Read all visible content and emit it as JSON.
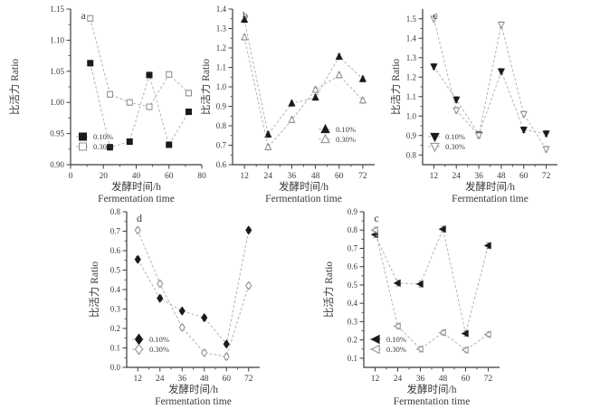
{
  "figure": {
    "background": "#ffffff",
    "axis_labels": {
      "y": "比活力 Ratio",
      "x_cn": "发酵时间/h",
      "x_en": "Fermentation time"
    },
    "legend_labels": [
      "0.10%",
      "0.30%"
    ],
    "colors": {
      "marker_filled": "#1a1a1a",
      "marker_open_stroke": "#8c8c8c",
      "line": "#b4b4b4",
      "errorbar_filled": "#6e6e6e",
      "errorbar_open": "#a0a0a0",
      "axis": "#3c3c3c",
      "text": "#3a3a3a"
    }
  },
  "chart_data": [
    {
      "type": "line",
      "panel": "a",
      "marker": "square",
      "legend_pos": "bottom-left",
      "x": [
        12,
        24,
        36,
        48,
        60,
        72
      ],
      "xlim": [
        0,
        80
      ],
      "xticks": [
        "0",
        "20",
        "40",
        "60",
        "80"
      ],
      "ylim": [
        0.9,
        1.15
      ],
      "yticks": [
        "0.90",
        "0.95",
        "1.00",
        "1.05",
        "1.10",
        "1.15"
      ],
      "series": [
        {
          "name": "0.10%",
          "style": "filled",
          "values": [
            1.063,
            0.928,
            0.937,
            1.044,
            0.932,
            0.985
          ]
        },
        {
          "name": "0.30%",
          "style": "open",
          "values": [
            1.135,
            1.013,
            1.0,
            0.993,
            1.045,
            1.015
          ]
        }
      ]
    },
    {
      "type": "line",
      "panel": "b",
      "marker": "triangle-up",
      "legend_pos": "bottom-right",
      "x": [
        12,
        24,
        36,
        48,
        60,
        72
      ],
      "xlim": [
        6,
        78
      ],
      "xticks": [
        "12",
        "24",
        "36",
        "48",
        "60",
        "72"
      ],
      "ylim": [
        0.6,
        1.4
      ],
      "yticks": [
        "0.6",
        "0.7",
        "0.8",
        "0.9",
        "1.0",
        "1.1",
        "1.2",
        "1.3",
        "1.4"
      ],
      "series": [
        {
          "name": "0.10%",
          "style": "filled",
          "values": [
            1.345,
            0.755,
            0.915,
            0.945,
            1.155,
            1.04
          ]
        },
        {
          "name": "0.30%",
          "style": "open",
          "values": [
            1.255,
            0.69,
            0.83,
            0.985,
            1.06,
            0.93
          ]
        }
      ]
    },
    {
      "type": "line",
      "panel": "c",
      "marker": "triangle-down",
      "legend_pos": "bottom-left",
      "x": [
        12,
        24,
        36,
        48,
        60,
        72
      ],
      "xlim": [
        6,
        78
      ],
      "xticks": [
        "12",
        "24",
        "36",
        "48",
        "60",
        "72"
      ],
      "ylim": [
        0.75,
        1.55
      ],
      "yticks": [
        "0.8",
        "0.9",
        "1.0",
        "1.1",
        "1.2",
        "1.3",
        "1.4",
        "1.5"
      ],
      "series": [
        {
          "name": "0.10%",
          "style": "filled",
          "values": [
            1.255,
            1.085,
            0.905,
            1.23,
            0.93,
            0.91
          ]
        },
        {
          "name": "0.30%",
          "style": "open",
          "values": [
            1.5,
            1.03,
            0.9,
            1.47,
            1.01,
            0.83
          ]
        }
      ]
    },
    {
      "type": "line",
      "panel": "d",
      "marker": "diamond",
      "legend_pos": "bottom-left",
      "x": [
        12,
        24,
        36,
        48,
        60,
        72
      ],
      "xlim": [
        6,
        78
      ],
      "xticks": [
        "12",
        "24",
        "36",
        "48",
        "60",
        "72"
      ],
      "ylim": [
        0.0,
        0.8
      ],
      "yticks": [
        "0.0",
        "0.1",
        "0.2",
        "0.3",
        "0.4",
        "0.5",
        "0.6",
        "0.7",
        "0.8"
      ],
      "series": [
        {
          "name": "0.10%",
          "style": "filled",
          "values": [
            0.555,
            0.355,
            0.29,
            0.255,
            0.12,
            0.705
          ]
        },
        {
          "name": "0.30%",
          "style": "open",
          "values": [
            0.705,
            0.43,
            0.205,
            0.075,
            0.055,
            0.42
          ]
        }
      ]
    },
    {
      "type": "line",
      "panel": "c",
      "marker": "triangle-left",
      "legend_pos": "bottom-left",
      "x": [
        12,
        24,
        36,
        48,
        60,
        72
      ],
      "xlim": [
        6,
        78
      ],
      "xticks": [
        "12",
        "24",
        "36",
        "48",
        "60",
        "72"
      ],
      "ylim": [
        0.05,
        0.9
      ],
      "yticks": [
        "0.1",
        "0.2",
        "0.3",
        "0.4",
        "0.5",
        "0.6",
        "0.7",
        "0.8",
        "0.9"
      ],
      "series": [
        {
          "name": "0.10%",
          "style": "filled",
          "values": [
            0.775,
            0.51,
            0.505,
            0.805,
            0.235,
            0.715
          ]
        },
        {
          "name": "0.30%",
          "style": "open",
          "values": [
            0.8,
            0.275,
            0.15,
            0.24,
            0.145,
            0.23
          ]
        }
      ]
    }
  ]
}
